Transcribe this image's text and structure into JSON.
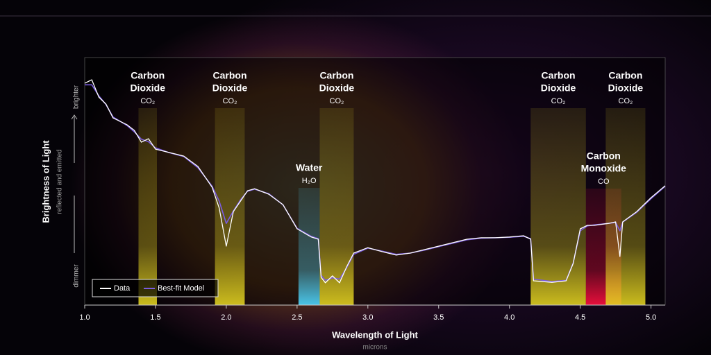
{
  "chart_data": {
    "type": "line",
    "x_label": "Wavelength of Light",
    "x_sublabel": "microns",
    "y_label": "Brightness of Light",
    "y_sublabel": "reflected and emitted",
    "y_top_label": "brighter",
    "y_bottom_label": "dimmer",
    "xlim": [
      1.0,
      5.1
    ],
    "ylim": [
      0,
      100
    ],
    "xticks": [
      {
        "value": 1,
        "label": "1.0"
      },
      1.5,
      {
        "value": 2,
        "label": "2.0"
      },
      2.5,
      {
        "value": 3,
        "label": "3.0"
      },
      3.5,
      {
        "value": 4,
        "label": "4.0"
      },
      4.5,
      {
        "value": 5,
        "label": "5.0"
      }
    ],
    "x": [
      1.0,
      1.05,
      1.1,
      1.15,
      1.2,
      1.3,
      1.35,
      1.4,
      1.45,
      1.5,
      1.6,
      1.7,
      1.8,
      1.9,
      1.95,
      2.0,
      2.05,
      2.1,
      2.15,
      2.2,
      2.3,
      2.4,
      2.5,
      2.6,
      2.65,
      2.67,
      2.7,
      2.75,
      2.8,
      2.85,
      2.9,
      3.0,
      3.1,
      3.2,
      3.3,
      3.4,
      3.5,
      3.6,
      3.7,
      3.8,
      3.9,
      4.0,
      4.1,
      4.15,
      4.17,
      4.3,
      4.4,
      4.45,
      4.5,
      4.55,
      4.6,
      4.7,
      4.75,
      4.78,
      4.8,
      4.9,
      5.0,
      5.1
    ],
    "series": [
      {
        "name": "Data",
        "color": "#ffffff",
        "values": [
          89.6,
          91,
          84,
          81.2,
          75.6,
          72.8,
          70.6,
          65.8,
          67.2,
          63,
          61.6,
          60.2,
          56,
          47.6,
          39.2,
          23.8,
          37.8,
          42,
          46.2,
          47,
          44.8,
          40.6,
          30.8,
          27.5,
          26.6,
          11.2,
          9,
          11.8,
          9,
          15.4,
          21,
          23.2,
          21.6,
          20.2,
          21,
          22.4,
          23.8,
          25.2,
          26.6,
          27.2,
          27.2,
          27.5,
          28,
          26.6,
          9.8,
          9.2,
          9.8,
          16.8,
          30.8,
          32.2,
          32.2,
          33,
          33.6,
          19.6,
          33.6,
          37.8,
          43.4,
          48.2
        ]
      },
      {
        "name": "Best-fit Model",
        "color": "#7a5ce0",
        "values": [
          89,
          89,
          84.5,
          81,
          76,
          72.5,
          70,
          67,
          66,
          63.5,
          61.5,
          60,
          55.5,
          48,
          42,
          33,
          38,
          42.5,
          46,
          46.8,
          45,
          40.5,
          31,
          27.8,
          26.8,
          12,
          10,
          11,
          10.5,
          15,
          20.5,
          23,
          21.8,
          20.5,
          21,
          22.2,
          23.6,
          25,
          26.4,
          27,
          27.2,
          27.4,
          27.8,
          26.8,
          10.5,
          9.5,
          10,
          17,
          30,
          32,
          32.4,
          33,
          33.4,
          30,
          33.5,
          37.5,
          43,
          48
        ]
      }
    ],
    "bands": [
      {
        "label": [
          "Carbon",
          "Dioxide"
        ],
        "formula": "CO₂",
        "range": [
          1.38,
          1.51
        ],
        "color": "#e0d020"
      },
      {
        "label": [
          "Carbon",
          "Dioxide"
        ],
        "formula": "CO₂",
        "range": [
          1.92,
          2.13
        ],
        "color": "#e0d020"
      },
      {
        "label": [
          "Water"
        ],
        "formula": "H₂O",
        "range": [
          2.51,
          2.66
        ],
        "color": "#4fd8ff"
      },
      {
        "label": [
          "Carbon",
          "Dioxide"
        ],
        "formula": "CO₂",
        "range": [
          2.66,
          2.9
        ],
        "color": "#e0d020"
      },
      {
        "label": [
          "Carbon",
          "Dioxide"
        ],
        "formula": "CO₂",
        "range": [
          4.15,
          4.54
        ],
        "color": "#e0d020"
      },
      {
        "label": [
          "Carbon",
          "Monoxide"
        ],
        "formula": "CO",
        "range": [
          4.54,
          4.79
        ],
        "color": "#ff1040"
      },
      {
        "label": [
          "Carbon",
          "Dioxide"
        ],
        "formula": "CO₂",
        "range": [
          4.68,
          4.96
        ],
        "color": "#e0d020"
      }
    ]
  }
}
